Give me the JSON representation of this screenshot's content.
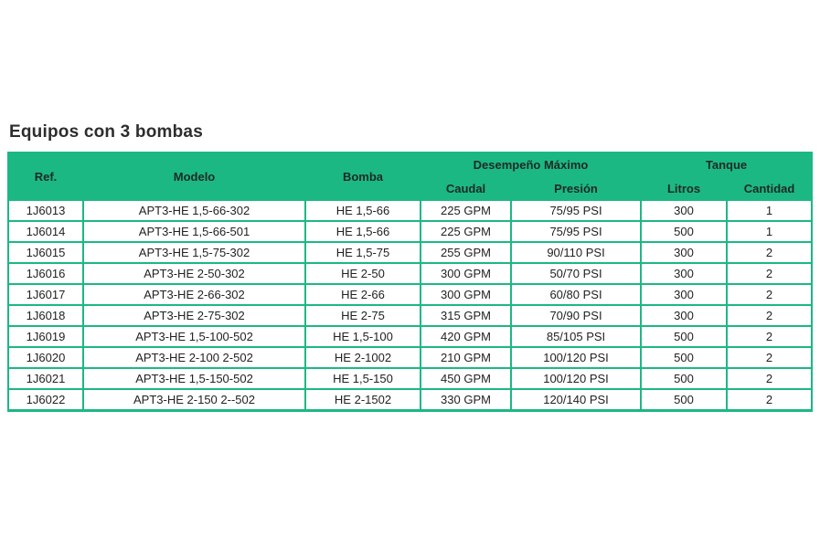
{
  "title": "Equipos con 3 bombas",
  "headers": {
    "ref": "Ref.",
    "modelo": "Modelo",
    "bomba": "Bomba",
    "desempeno": "Desempeño Máximo",
    "caudal": "Caudal",
    "presion": "Presión",
    "tanque": "Tanque",
    "litros": "Litros",
    "cantidad": "Cantidad"
  },
  "rows": [
    {
      "ref": "1J6013",
      "modelo": "APT3-HE 1,5-66-302",
      "bomba": "HE 1,5-66",
      "caudal": "225 GPM",
      "presion": "75/95 PSI",
      "litros": "300",
      "cantidad": "1"
    },
    {
      "ref": "1J6014",
      "modelo": "APT3-HE 1,5-66-501",
      "bomba": "HE 1,5-66",
      "caudal": "225 GPM",
      "presion": "75/95 PSI",
      "litros": "500",
      "cantidad": "1"
    },
    {
      "ref": "1J6015",
      "modelo": "APT3-HE 1,5-75-302",
      "bomba": "HE 1,5-75",
      "caudal": "255 GPM",
      "presion": "90/110 PSI",
      "litros": "300",
      "cantidad": "2"
    },
    {
      "ref": "1J6016",
      "modelo": "APT3-HE 2-50-302",
      "bomba": "HE 2-50",
      "caudal": "300 GPM",
      "presion": "50/70 PSI",
      "litros": "300",
      "cantidad": "2"
    },
    {
      "ref": "1J6017",
      "modelo": "APT3-HE 2-66-302",
      "bomba": "HE 2-66",
      "caudal": "300 GPM",
      "presion": "60/80 PSI",
      "litros": "300",
      "cantidad": "2"
    },
    {
      "ref": "1J6018",
      "modelo": "APT3-HE 2-75-302",
      "bomba": "HE 2-75",
      "caudal": "315 GPM",
      "presion": "70/90 PSI",
      "litros": "300",
      "cantidad": "2"
    },
    {
      "ref": "1J6019",
      "modelo": "APT3-HE 1,5-100-502",
      "bomba": "HE 1,5-100",
      "caudal": "420 GPM",
      "presion": "85/105 PSI",
      "litros": "500",
      "cantidad": "2"
    },
    {
      "ref": "1J6020",
      "modelo": "APT3-HE 2-100 2-502",
      "bomba": "HE 2-1002",
      "caudal": "210 GPM",
      "presion": "100/120 PSI",
      "litros": "500",
      "cantidad": "2"
    },
    {
      "ref": "1J6021",
      "modelo": "APT3-HE 1,5-150-502",
      "bomba": "HE 1,5-150",
      "caudal": "450 GPM",
      "presion": "100/120 PSI",
      "litros": "500",
      "cantidad": "2"
    },
    {
      "ref": "1J6022",
      "modelo": "APT3-HE 2-150 2--502",
      "bomba": "HE 2-1502",
      "caudal": "330 GPM",
      "presion": "120/140 PSI",
      "litros": "500",
      "cantidad": "2"
    }
  ],
  "colors": {
    "header_green": "#1cb883",
    "text": "#222222"
  }
}
